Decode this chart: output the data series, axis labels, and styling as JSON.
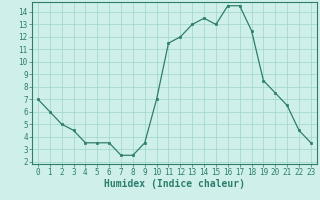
{
  "x": [
    0,
    1,
    2,
    3,
    4,
    5,
    6,
    7,
    8,
    9,
    10,
    11,
    12,
    13,
    14,
    15,
    16,
    17,
    18,
    19,
    20,
    21,
    22,
    23
  ],
  "y": [
    7.0,
    6.0,
    5.0,
    4.5,
    3.5,
    3.5,
    3.5,
    2.5,
    2.5,
    3.5,
    7.0,
    11.5,
    12.0,
    13.0,
    13.5,
    13.0,
    14.5,
    14.5,
    12.5,
    8.5,
    7.5,
    6.5,
    4.5,
    3.5
  ],
  "xlabel": "Humidex (Indice chaleur)",
  "xlim": [
    -0.5,
    23.5
  ],
  "ylim": [
    1.8,
    14.8
  ],
  "yticks": [
    2,
    3,
    4,
    5,
    6,
    7,
    8,
    9,
    10,
    11,
    12,
    13,
    14
  ],
  "xticks": [
    0,
    1,
    2,
    3,
    4,
    5,
    6,
    7,
    8,
    9,
    10,
    11,
    12,
    13,
    14,
    15,
    16,
    17,
    18,
    19,
    20,
    21,
    22,
    23
  ],
  "line_color": "#2d7d6e",
  "marker_color": "#2d7d6e",
  "bg_color": "#cff0ea",
  "grid_color": "#9fd4cc",
  "axis_color": "#2d7d6e",
  "tick_fontsize": 5.5,
  "xlabel_fontsize": 7
}
